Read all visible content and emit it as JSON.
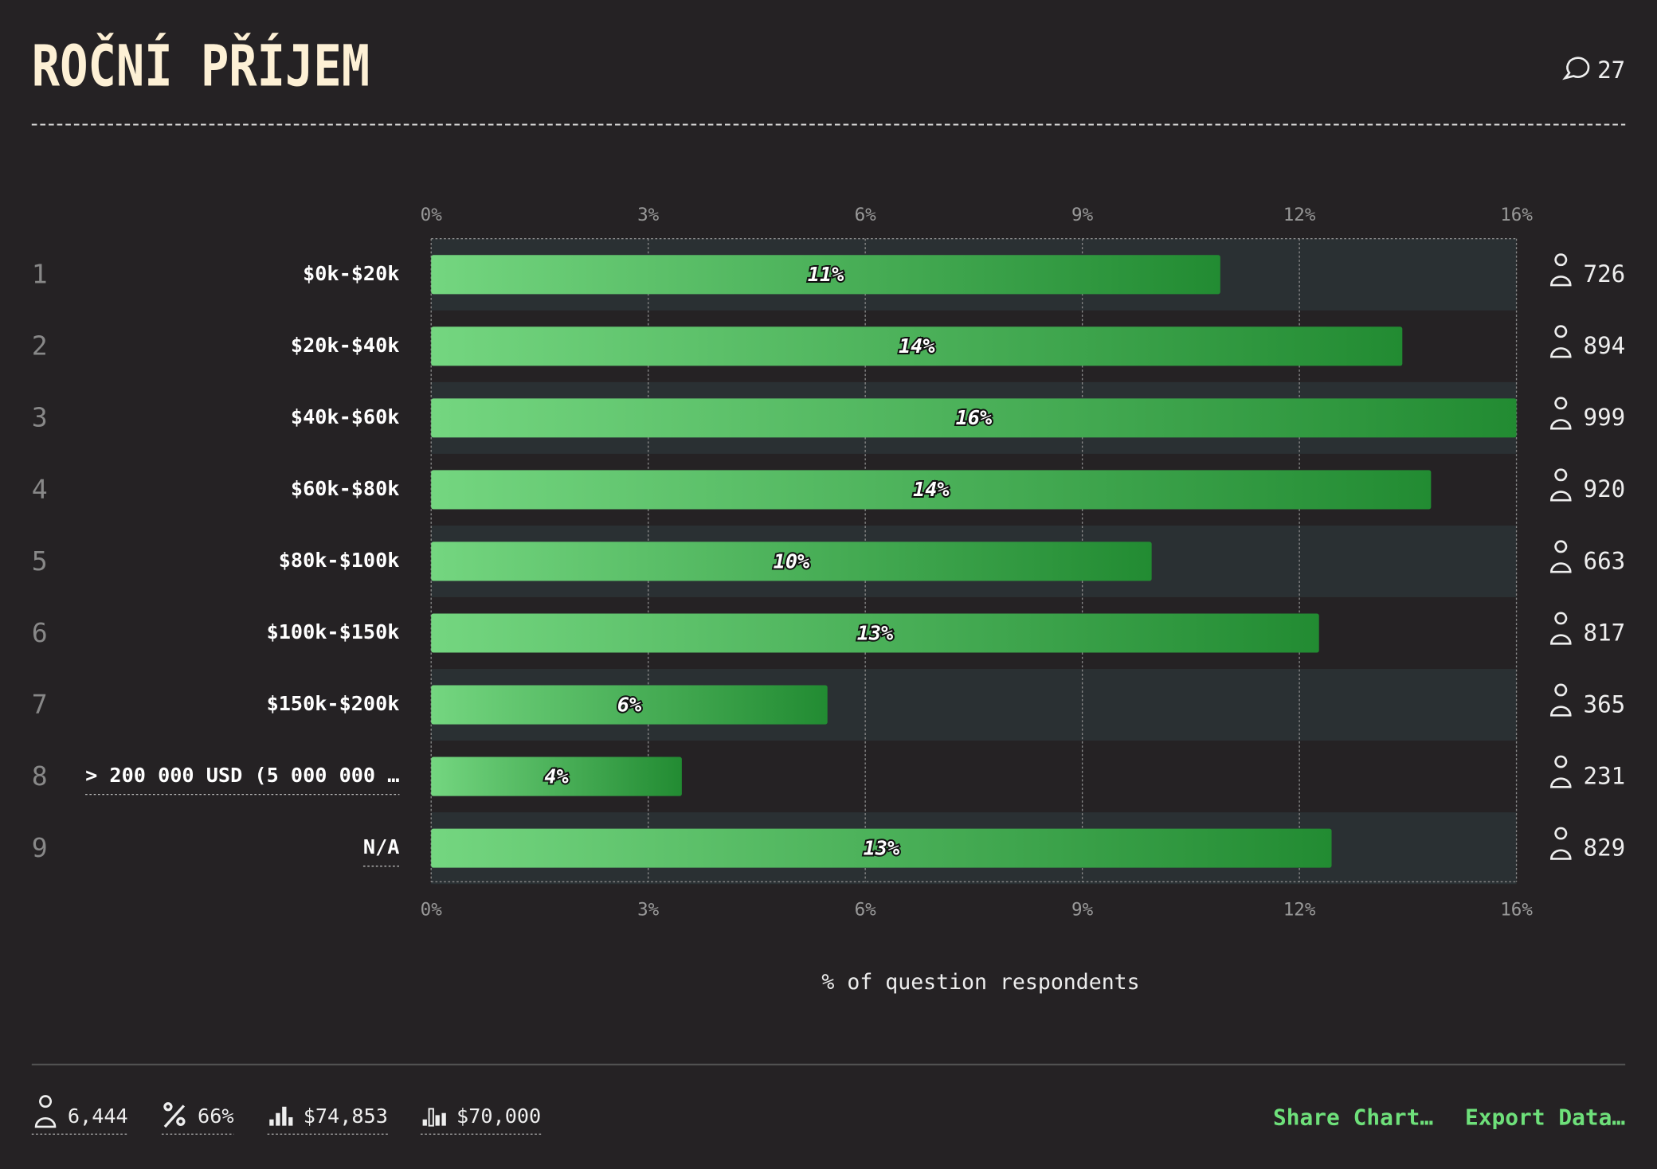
{
  "header": {
    "title": "ROČNÍ PŘÍJEM",
    "comments": 27
  },
  "chart_data": {
    "type": "bar",
    "orientation": "horizontal",
    "ranks": [
      1,
      2,
      3,
      4,
      5,
      6,
      7,
      8,
      9
    ],
    "categories": [
      "$0k-$20k",
      "$20k-$40k",
      "$40k-$60k",
      "$60k-$80k",
      "$80k-$100k",
      "$100k-$150k",
      "$150k-$200k",
      "> 200 000 USD (5 000 000 …",
      "N/A"
    ],
    "values": [
      11.27,
      13.87,
      15.5,
      14.28,
      10.29,
      12.68,
      5.66,
      3.58,
      12.86
    ],
    "value_labels": [
      "11%",
      "14%",
      "16%",
      "14%",
      "10%",
      "13%",
      "6%",
      "4%",
      "13%"
    ],
    "counts": [
      726,
      894,
      999,
      920,
      663,
      817,
      365,
      231,
      829
    ],
    "colors": [
      "#74d680",
      "#228b32"
    ],
    "xlim": [
      0,
      15.5
    ],
    "xticks": [
      {
        "value": 0,
        "label": "0%"
      },
      {
        "value": 3.1,
        "label": "3%"
      },
      {
        "value": 6.2,
        "label": "6%"
      },
      {
        "value": 9.3,
        "label": "9%"
      },
      {
        "value": 12.4,
        "label": "12%"
      },
      {
        "value": 15.5,
        "label": "16%"
      }
    ],
    "xlabel": "% of question respondents",
    "grid": true
  },
  "footer": {
    "stats": [
      "6,444",
      "66%",
      "$74,853",
      "$70,000"
    ],
    "actions": [
      "Share Chart…",
      "Export Data…"
    ]
  }
}
